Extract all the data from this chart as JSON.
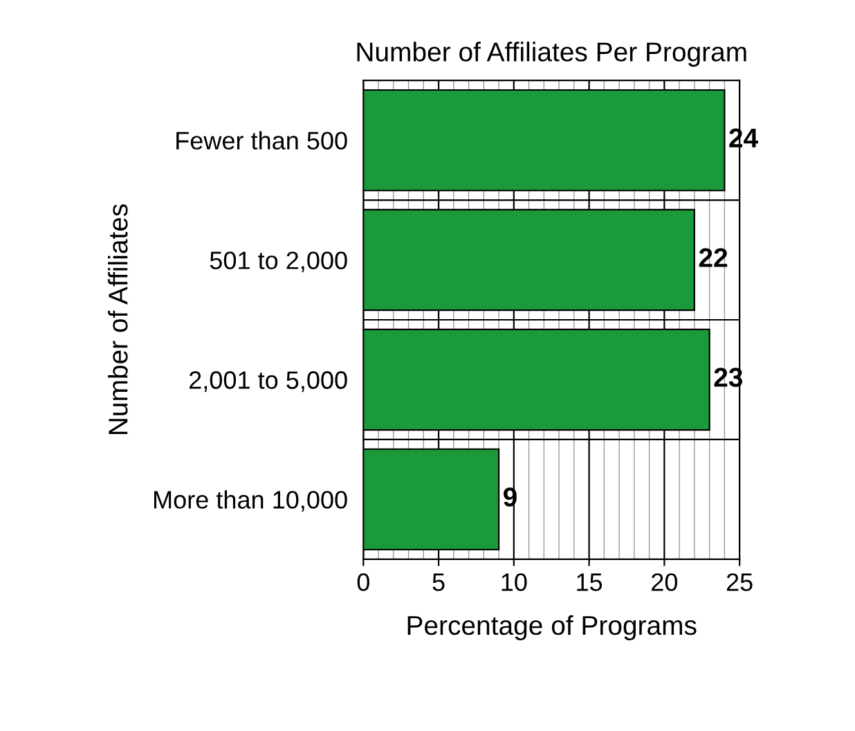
{
  "chart_data": {
    "type": "bar",
    "orientation": "horizontal",
    "title": "Number of Affiliates Per Program",
    "xlabel": "Percentage of Programs",
    "ylabel": "Number of Affiliates",
    "categories": [
      "Fewer than 500",
      "501 to 2,000",
      "2,001 to 5,000",
      "More than 10,000"
    ],
    "values": [
      24,
      22,
      23,
      9
    ],
    "color": "#1a9a3a",
    "xlim": [
      0,
      25
    ],
    "xticks": [
      0,
      5,
      10,
      15,
      20,
      25
    ],
    "grid": "x",
    "data_labels": true
  }
}
